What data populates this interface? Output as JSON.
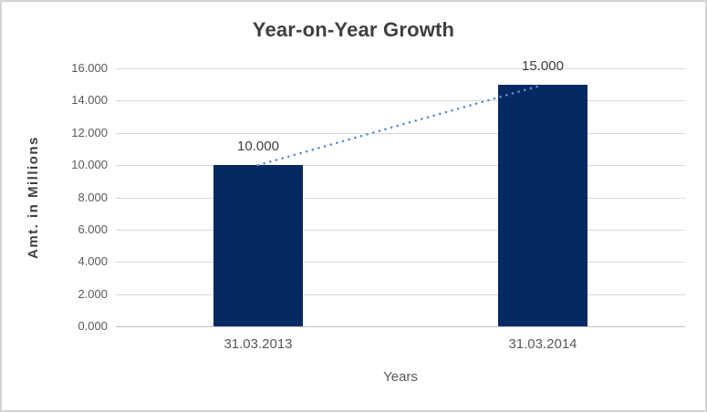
{
  "window": {
    "background_color": "#ffffff",
    "border_color": "#d4d4d4"
  },
  "chart_data": {
    "type": "bar",
    "title": "Year-on-Year Growth",
    "xlabel": "Years",
    "ylabel": "Amt. in Millions",
    "categories": [
      "31.03.2013",
      "31.03.2014"
    ],
    "values": [
      10000,
      15000
    ],
    "value_labels": [
      "10.000",
      "15.000"
    ],
    "ylim": [
      0,
      16000
    ],
    "ytick_values": [
      0,
      2000,
      4000,
      6000,
      8000,
      10000,
      12000,
      14000,
      16000
    ],
    "ytick_labels": [
      "0.000",
      "2.000",
      "4.000",
      "6.000",
      "8.000",
      "10.000",
      "12.000",
      "14.000",
      "16.000"
    ],
    "grid": true,
    "legend": "none",
    "bar_color": "#052a63",
    "trendline": {
      "style": "dotted",
      "color": "#5b8ed6",
      "from_point": [
        0,
        10000
      ],
      "to_point": [
        1,
        15000
      ]
    }
  }
}
